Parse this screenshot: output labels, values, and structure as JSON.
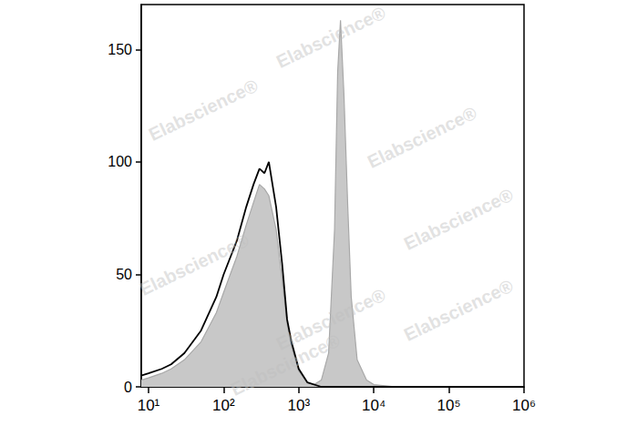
{
  "chart_data": {
    "type": "line",
    "log": "x",
    "grid": false,
    "watermark": "Elabscience®",
    "xlim": [
      8,
      1000000
    ],
    "xticks": [
      {
        "value": 10,
        "label": "10¹"
      },
      {
        "value": 100,
        "label": "10²"
      },
      {
        "value": 1000,
        "label": "10³"
      },
      {
        "value": 10000,
        "label": "10⁴"
      },
      {
        "value": 100000,
        "label": "10⁵"
      },
      {
        "value": 1000000,
        "label": "10⁶"
      }
    ],
    "ylim": [
      0,
      170
    ],
    "yticks": [
      0,
      50,
      100,
      150
    ],
    "series": [
      {
        "type": "area",
        "color": "#c8c8c8",
        "x": [
          8,
          10,
          15,
          20,
          30,
          50,
          80,
          100,
          150,
          200,
          250,
          300,
          350,
          400,
          500,
          600,
          700,
          800,
          1000,
          1300,
          1600,
          2000,
          2500,
          3000,
          3300,
          3600,
          4000,
          4500,
          5000,
          6000,
          8000,
          10000,
          20000,
          1000000
        ],
        "values": [
          3,
          4,
          6,
          8,
          12,
          20,
          33,
          42,
          58,
          72,
          82,
          90,
          88,
          85,
          70,
          48,
          28,
          18,
          7,
          2,
          1,
          3,
          15,
          70,
          140,
          163,
          130,
          80,
          40,
          12,
          3,
          1,
          0,
          0
        ]
      },
      {
        "type": "line",
        "color": "#000000",
        "x": [
          8,
          10,
          15,
          20,
          30,
          50,
          80,
          100,
          150,
          200,
          250,
          300,
          350,
          400,
          500,
          600,
          700,
          800,
          1000,
          1300,
          2000,
          10000,
          1000000
        ],
        "values": [
          5,
          6,
          8,
          10,
          15,
          25,
          40,
          50,
          65,
          80,
          90,
          97,
          95,
          100,
          80,
          55,
          30,
          20,
          8,
          2,
          0,
          0,
          0
        ]
      }
    ]
  }
}
